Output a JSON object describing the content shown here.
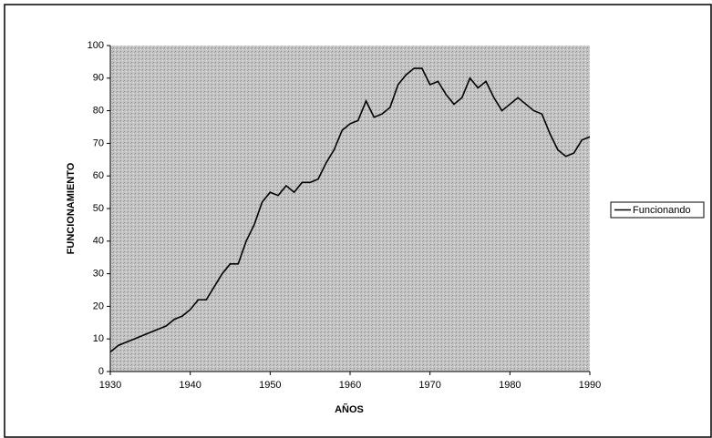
{
  "chart_data": {
    "type": "line",
    "xlabel": "AÑOS",
    "ylabel": "FUNCIONAMIENTO",
    "x": [
      1930,
      1931,
      1932,
      1933,
      1934,
      1935,
      1936,
      1937,
      1938,
      1939,
      1940,
      1941,
      1942,
      1943,
      1944,
      1945,
      1946,
      1947,
      1948,
      1949,
      1950,
      1951,
      1952,
      1953,
      1954,
      1955,
      1956,
      1957,
      1958,
      1959,
      1960,
      1961,
      1962,
      1963,
      1964,
      1965,
      1966,
      1967,
      1968,
      1969,
      1970,
      1971,
      1972,
      1973,
      1974,
      1975,
      1976,
      1977,
      1978,
      1979,
      1980,
      1981,
      1982,
      1983,
      1984,
      1985,
      1986,
      1987,
      1988,
      1989,
      1990
    ],
    "series": [
      {
        "name": "Funcionando",
        "color": "#000000",
        "values": [
          6,
          8,
          9,
          10,
          11,
          12,
          13,
          14,
          16,
          17,
          19,
          22,
          22,
          26,
          30,
          33,
          33,
          40,
          45,
          52,
          55,
          54,
          57,
          55,
          58,
          58,
          59,
          64,
          68,
          74,
          76,
          77,
          83,
          78,
          79,
          81,
          88,
          91,
          93,
          93,
          88,
          89,
          85,
          82,
          84,
          90,
          87,
          89,
          84,
          80,
          82,
          84,
          82,
          80,
          79,
          73,
          68,
          66,
          67,
          71,
          72
        ]
      }
    ],
    "xlim": [
      1930,
      1990
    ],
    "xticks": [
      1930,
      1940,
      1950,
      1960,
      1970,
      1980,
      1990
    ],
    "ylim": [
      0,
      100
    ],
    "yticks": [
      0,
      10,
      20,
      30,
      40,
      50,
      60,
      70,
      80,
      90,
      100
    ],
    "legend": "right"
  }
}
